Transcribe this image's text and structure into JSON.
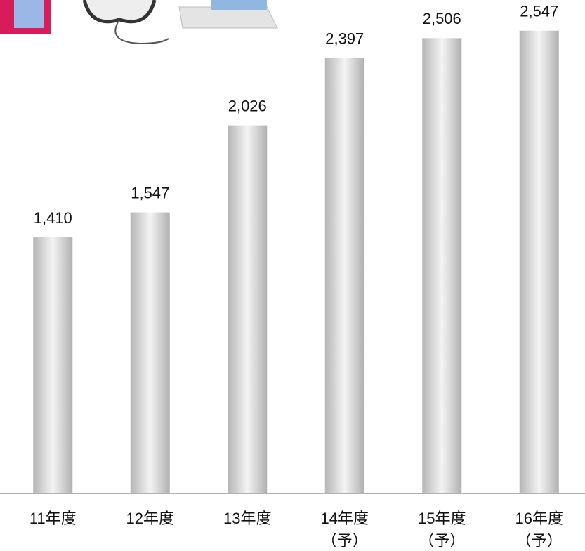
{
  "chart_data": {
    "type": "bar",
    "categories": [
      "11年度",
      "12年度",
      "13年度",
      "14年度\n（予）",
      "15年度\n（予）",
      "16年度\n（予）"
    ],
    "values": [
      1410,
      1547,
      2026,
      2397,
      2506,
      2547
    ],
    "value_labels": [
      "1,410",
      "1,547",
      "2,026",
      "2,397",
      "2,506",
      "2,547"
    ],
    "color": "#c8c8c8",
    "ylim": [
      0,
      2716
    ]
  }
}
